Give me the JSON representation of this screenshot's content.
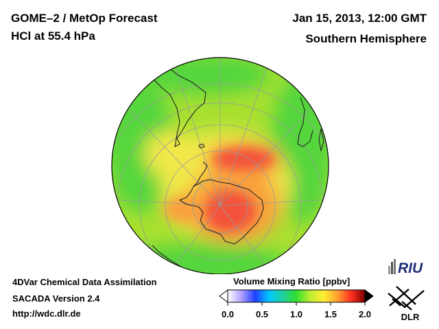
{
  "header": {
    "title_line1": "GOME–2 / MetOp Forecast",
    "title_line2": "HCl at 55.4 hPa",
    "datetime": "Jan 15, 2013, 12:00 GMT",
    "region": "Southern Hemisphere"
  },
  "footer": {
    "line1": "4DVar Chemical Data Assimilation",
    "line2": "SACADA Version 2.4",
    "line3": "http://wdc.dlr.de"
  },
  "colorbar": {
    "title": "Volume Mixing Ratio [ppbv]",
    "min": 0.0,
    "max": 2.0,
    "ticks": [
      "0.0",
      "0.5",
      "1.0",
      "1.5",
      "2.0"
    ],
    "tick_values": [
      0.0,
      0.5,
      1.0,
      1.5,
      2.0
    ],
    "colors": [
      "#ffffff",
      "#b0a0ff",
      "#2040ff",
      "#00c8ff",
      "#20d0a0",
      "#30e030",
      "#c0ee30",
      "#ffee30",
      "#ffa030",
      "#ff3020",
      "#7a0000"
    ]
  },
  "logos": {
    "riu": "RIU",
    "dlr": "DLR"
  },
  "map": {
    "projection": "orthographic south polar",
    "fill_colors": {
      "background": "#a8e030",
      "green": "#54d63c",
      "yellow": "#f2e84a",
      "orange": "#f9a23c",
      "red": "#f3523a"
    }
  }
}
